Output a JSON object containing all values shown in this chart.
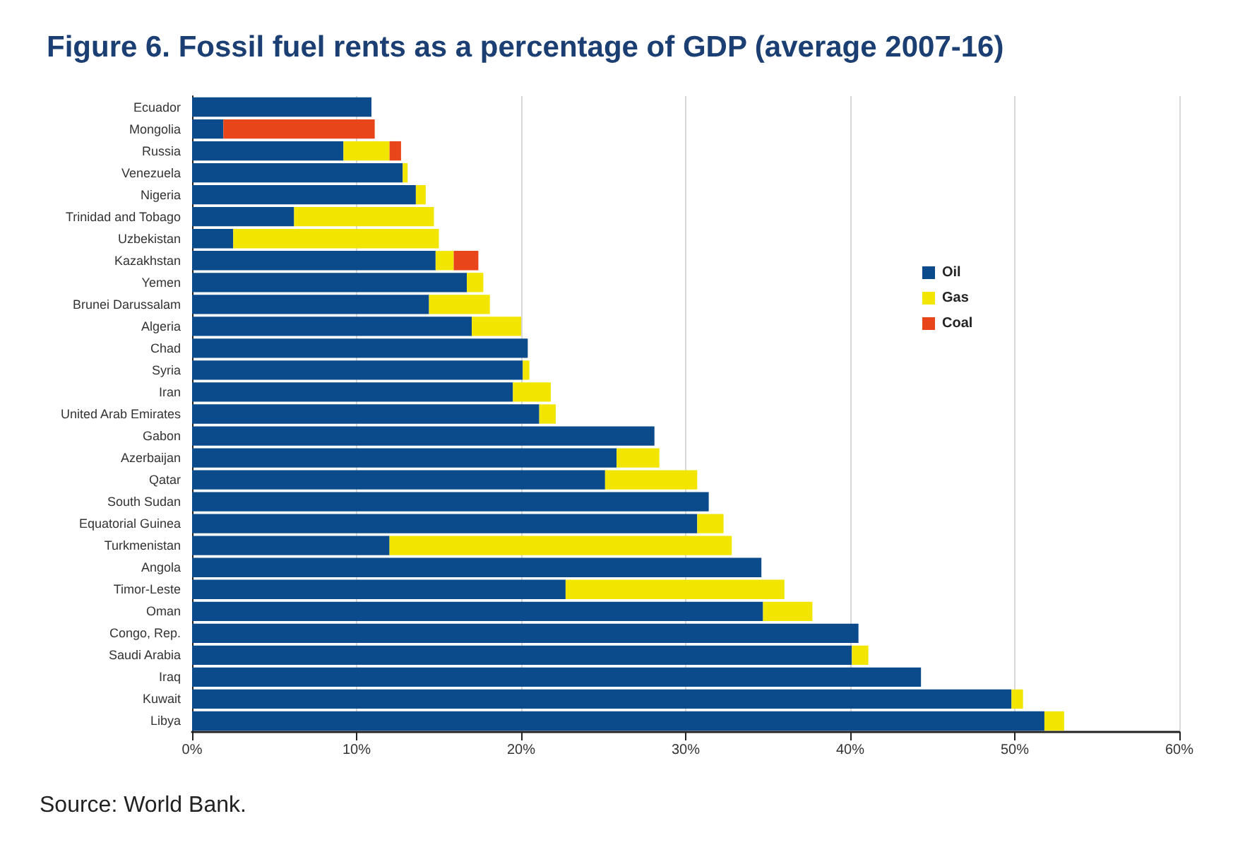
{
  "chart_data": {
    "type": "bar",
    "orientation": "horizontal",
    "stacked": true,
    "title": "Figure 6. Fossil fuel rents as a percentage of GDP (average 2007-16)",
    "annotations": [
      "Source: World Bank."
    ],
    "categories": [
      "Ecuador",
      "Mongolia",
      "Russia",
      "Venezuela",
      "Nigeria",
      "Trinidad and Tobago",
      "Uzbekistan",
      "Kazakhstan",
      "Yemen",
      "Brunei Darussalam",
      "Algeria",
      "Chad",
      "Syria",
      "Iran",
      "United Arab Emirates",
      "Gabon",
      "Azerbaijan",
      "Qatar",
      "South Sudan",
      "Equatorial Guinea",
      "Turkmenistan",
      "Angola",
      "Timor-Leste",
      "Oman",
      "Congo, Rep.",
      "Saudi Arabia",
      "Iraq",
      "Kuwait",
      "Libya"
    ],
    "series": [
      {
        "name": "Oil",
        "color": "#0b4a8b",
        "values": [
          10.9,
          1.9,
          9.2,
          12.8,
          13.6,
          6.2,
          2.5,
          14.8,
          16.7,
          14.4,
          17.0,
          20.4,
          20.1,
          19.5,
          21.1,
          28.1,
          25.8,
          25.1,
          31.4,
          30.7,
          12.0,
          34.6,
          22.7,
          34.7,
          40.5,
          40.1,
          44.3,
          49.8,
          51.8
        ]
      },
      {
        "name": "Gas",
        "color": "#f2e600",
        "values": [
          null,
          null,
          2.8,
          0.3,
          0.6,
          8.5,
          12.5,
          1.1,
          1.0,
          3.7,
          3.0,
          null,
          0.4,
          2.3,
          1.0,
          null,
          2.6,
          5.6,
          null,
          1.6,
          20.8,
          null,
          13.3,
          3.0,
          null,
          1.0,
          null,
          0.7,
          1.2
        ]
      },
      {
        "name": "Coal",
        "color": "#e8461a",
        "values": [
          null,
          9.2,
          0.7,
          null,
          null,
          null,
          null,
          1.5,
          null,
          null,
          null,
          null,
          null,
          null,
          null,
          null,
          null,
          null,
          null,
          null,
          null,
          null,
          null,
          null,
          null,
          null,
          null,
          null,
          null
        ]
      }
    ],
    "xlim": [
      0,
      60
    ],
    "xticks": [
      {
        "value": 0,
        "label": "0%"
      },
      {
        "value": 10,
        "label": "10%"
      },
      {
        "value": 20,
        "label": "20%"
      },
      {
        "value": 30,
        "label": "30%"
      },
      {
        "value": 40,
        "label": "40%"
      },
      {
        "value": 50,
        "label": "50%"
      },
      {
        "value": 60,
        "label": "60%"
      }
    ],
    "grid": "x",
    "legend": "top right"
  }
}
